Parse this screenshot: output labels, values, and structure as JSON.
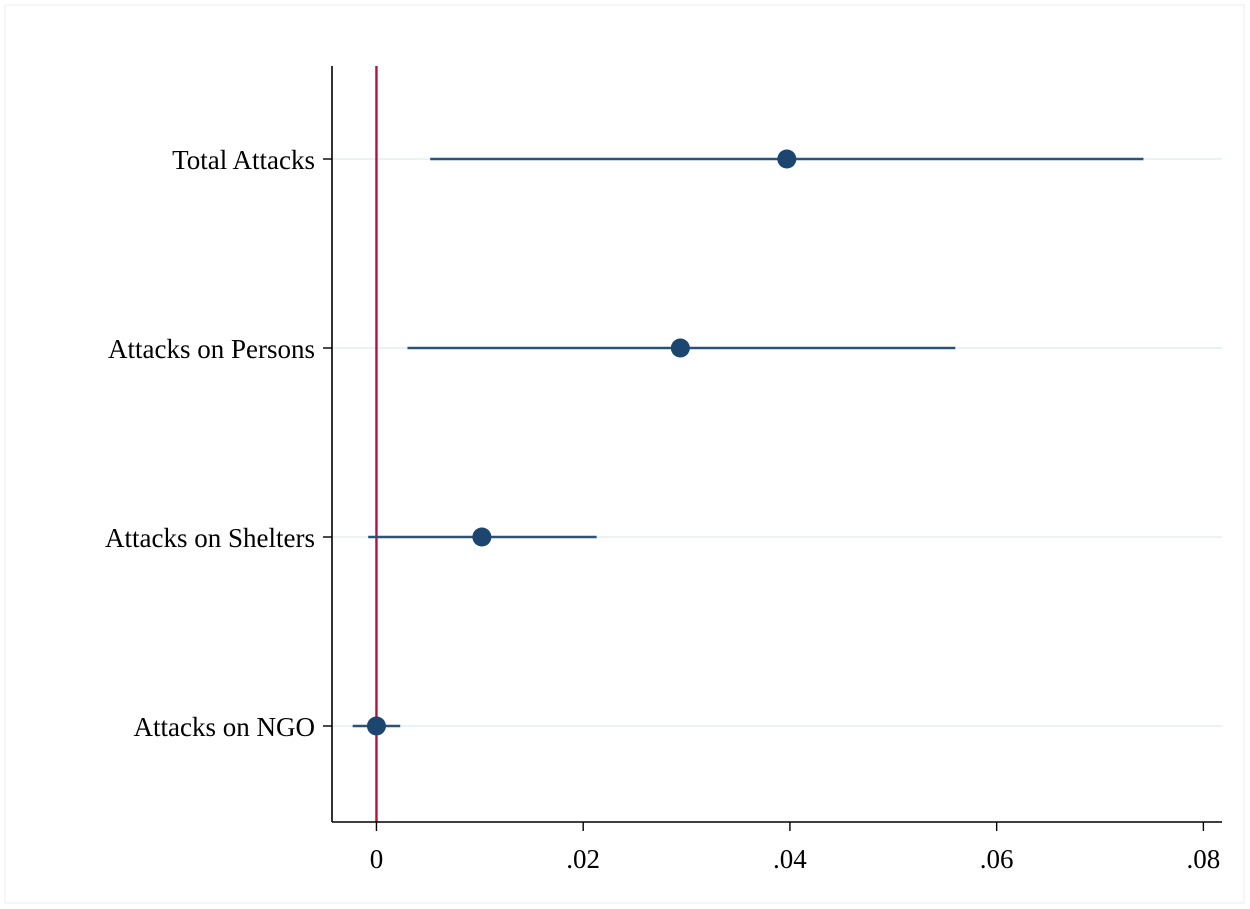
{
  "chart_data": {
    "type": "scatter",
    "subtype": "coefficient-plot",
    "orientation": "horizontal",
    "categories": [
      "Total Attacks",
      "Attacks on Persons",
      "Attacks on Shelters",
      "Attacks on NGO"
    ],
    "series": [
      {
        "estimates": [
          0.0397,
          0.0294,
          0.0102,
          0.0
        ],
        "ci_low": [
          0.0052,
          0.003,
          -0.0008,
          -0.0023
        ],
        "ci_high": [
          0.0742,
          0.056,
          0.0213,
          0.0023
        ]
      }
    ],
    "x_ticks": [
      {
        "value": 0,
        "label": "0"
      },
      {
        "value": 0.02,
        "label": ".02"
      },
      {
        "value": 0.04,
        "label": ".04"
      },
      {
        "value": 0.06,
        "label": ".06"
      },
      {
        "value": 0.08,
        "label": ".08"
      }
    ],
    "xlim": [
      -0.0043,
      0.0818
    ],
    "reference_line": {
      "x": 0,
      "color": "#b5103f"
    },
    "marker_color": "#1c4670",
    "line_color": "#2b5377",
    "grid": "horizontal",
    "legend": "none"
  }
}
